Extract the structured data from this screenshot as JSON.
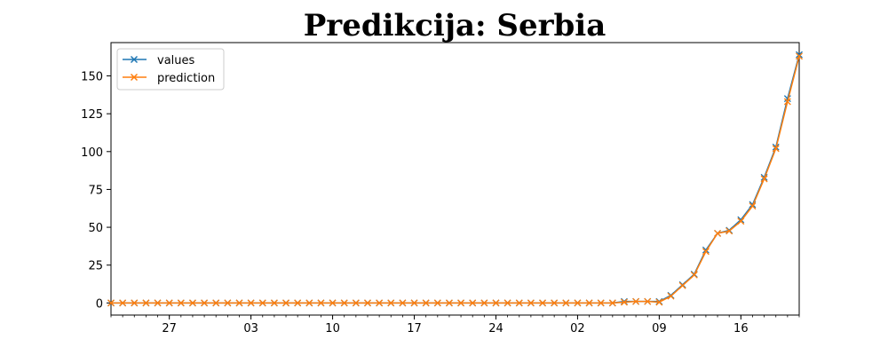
{
  "chart_data": {
    "type": "line",
    "title": "Predikcija: Serbia",
    "xlabel": "",
    "ylabel": "",
    "x_start": "2020-01-22",
    "x_end": "2020-03-21",
    "x_ticks": [
      {
        "date": "2020-01-27",
        "label": "27"
      },
      {
        "date": "2020-02-03",
        "label": "03"
      },
      {
        "date": "2020-02-10",
        "label": "10"
      },
      {
        "date": "2020-02-17",
        "label": "17"
      },
      {
        "date": "2020-02-24",
        "label": "24"
      },
      {
        "date": "2020-03-02",
        "label": "02"
      },
      {
        "date": "2020-03-09",
        "label": "09"
      },
      {
        "date": "2020-03-16",
        "label": "16"
      }
    ],
    "y_ticks": [
      0,
      25,
      50,
      75,
      100,
      125,
      150
    ],
    "ylim": [
      -8,
      172
    ],
    "grid": false,
    "legend": "upper left",
    "colors": {
      "values": "#1f77b4",
      "prediction": "#ff7f0e"
    },
    "series": [
      {
        "name": "values",
        "values": [
          0,
          0,
          0,
          0,
          0,
          0,
          0,
          0,
          0,
          0,
          0,
          0,
          0,
          0,
          0,
          0,
          0,
          0,
          0,
          0,
          0,
          0,
          0,
          0,
          0,
          0,
          0,
          0,
          0,
          0,
          0,
          0,
          0,
          0,
          0,
          0,
          0,
          0,
          0,
          0,
          0,
          0,
          0,
          0,
          1,
          1,
          1,
          1,
          5,
          12,
          19,
          35,
          46,
          48,
          55,
          65,
          83,
          103,
          135,
          164
        ]
      },
      {
        "name": "prediction",
        "values": [
          0,
          0,
          0,
          0,
          0,
          0,
          0,
          0,
          0,
          0,
          0,
          0,
          0,
          0,
          0,
          0,
          0,
          0,
          0,
          0,
          0,
          0,
          0,
          0,
          0,
          0,
          0,
          0,
          0,
          0,
          0,
          0,
          0,
          0,
          0,
          0,
          0,
          0,
          0,
          0,
          0,
          0,
          0,
          0,
          0.5,
          1,
          1,
          0.5,
          4.5,
          11.5,
          18.5,
          34,
          46,
          47.5,
          54,
          64,
          82,
          102,
          133,
          163
        ]
      }
    ]
  }
}
